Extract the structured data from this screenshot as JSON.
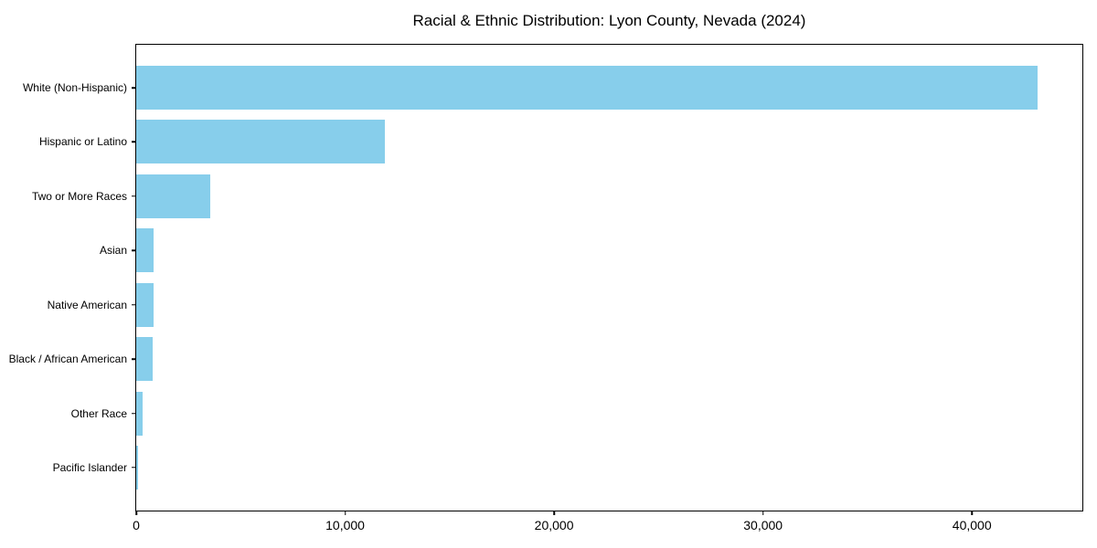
{
  "chart_data": {
    "type": "bar",
    "orientation": "horizontal",
    "title": "Racial & Ethnic Distribution: Lyon County, Nevada (2024)",
    "xlabel": "",
    "ylabel": "",
    "categories": [
      "White (Non-Hispanic)",
      "Hispanic or Latino",
      "Two or More Races",
      "Asian",
      "Native American",
      "Black / African American",
      "Other Race",
      "Pacific Islander"
    ],
    "values": [
      43150,
      11900,
      3540,
      850,
      840,
      780,
      290,
      80
    ],
    "xlim": [
      0,
      45285
    ],
    "x_ticks": [
      {
        "value": 0,
        "label": "0"
      },
      {
        "value": 10000,
        "label": "10,000"
      },
      {
        "value": 20000,
        "label": "20,000"
      },
      {
        "value": 30000,
        "label": "30,000"
      },
      {
        "value": 40000,
        "label": "40,000"
      }
    ],
    "grid": false,
    "legend": null,
    "bar_color": "#87CEEB",
    "spine_color": "#000000",
    "text_color": "#000000",
    "background_color": "#ffffff"
  }
}
